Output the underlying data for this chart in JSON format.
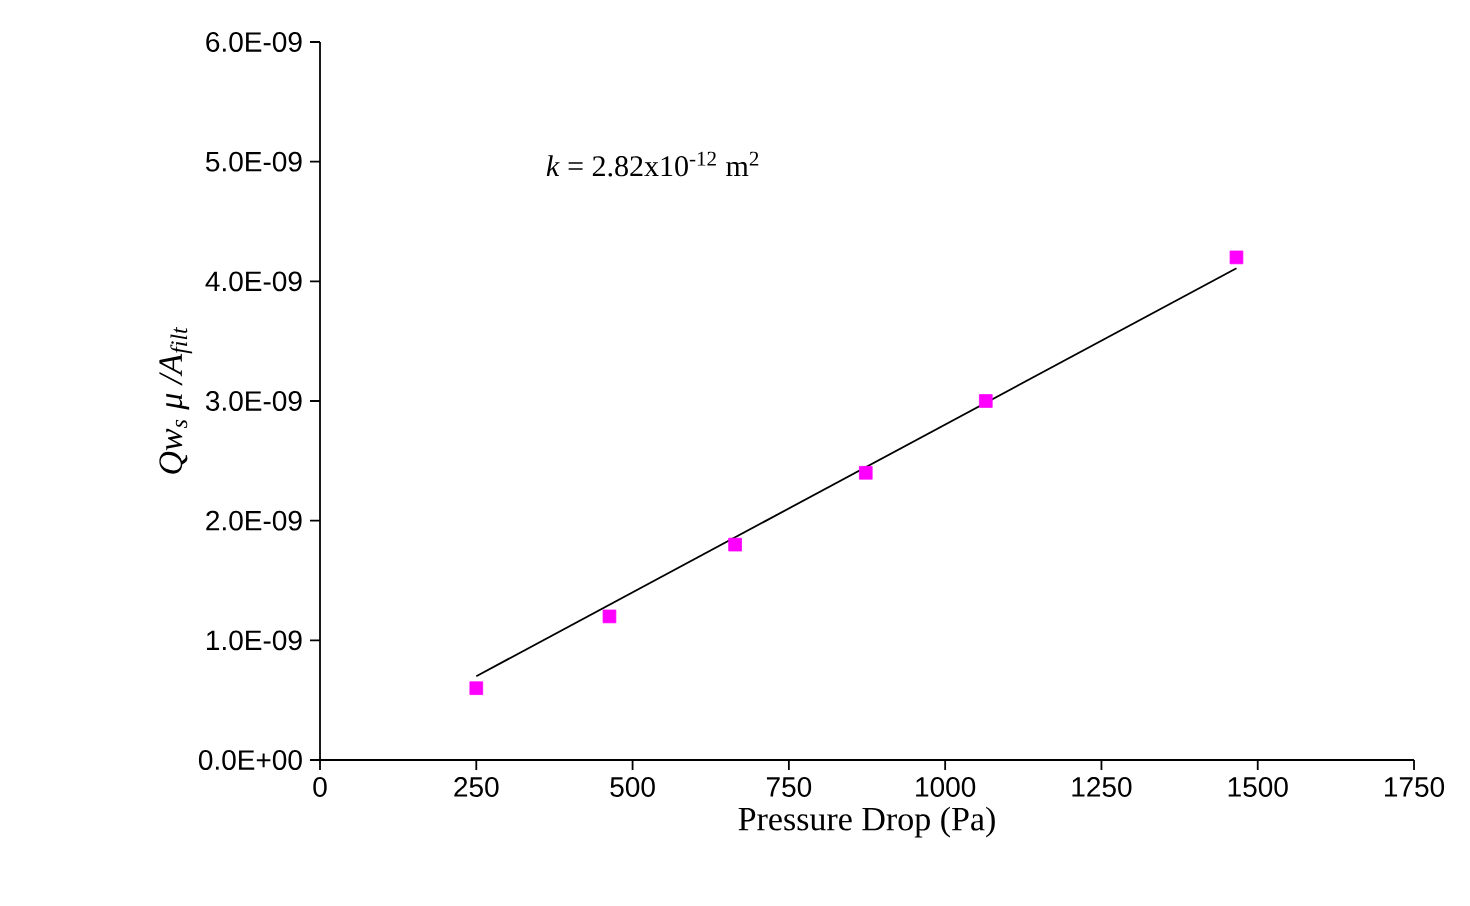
{
  "chart_data": {
    "type": "scatter",
    "xlabel": "Pressure Drop (Pa)",
    "ylabel": "Qw$_{s}$ μ /A$_{filt}$",
    "annotations": [
      "*k*  =  2.82x10$^{-12}$ m$^{2}$"
    ],
    "xlim": [
      0,
      1750
    ],
    "xticks": [
      0,
      250,
      500,
      750,
      1000,
      1250,
      1500,
      1750
    ],
    "ylim": [
      0,
      6e-09
    ],
    "yticks": [
      {
        "value": 0,
        "label": "0.0E+00"
      },
      {
        "value": 1e-09,
        "label": "1.0E-09"
      },
      {
        "value": 2e-09,
        "label": "2.0E-09"
      },
      {
        "value": 3e-09,
        "label": "3.0E-09"
      },
      {
        "value": 4e-09,
        "label": "4.0E-09"
      },
      {
        "value": 5e-09,
        "label": "5.0E-09"
      },
      {
        "value": 6e-09,
        "label": "6.0E-09"
      }
    ],
    "grid": false,
    "series": [
      {
        "type": "scatter",
        "color": "#ff00ff",
        "marker": "square",
        "x": [
          250,
          463,
          664,
          873,
          1065,
          1466
        ],
        "values": [
          6e-10,
          1.2e-09,
          1.8e-09,
          2.4e-09,
          3e-09,
          4.2e-09
        ]
      },
      {
        "type": "line",
        "color": "#000000",
        "marker": "none",
        "line_style": "solid",
        "x": [
          250,
          1466
        ],
        "values": [
          7e-10,
          4.11e-09
        ]
      }
    ]
  }
}
